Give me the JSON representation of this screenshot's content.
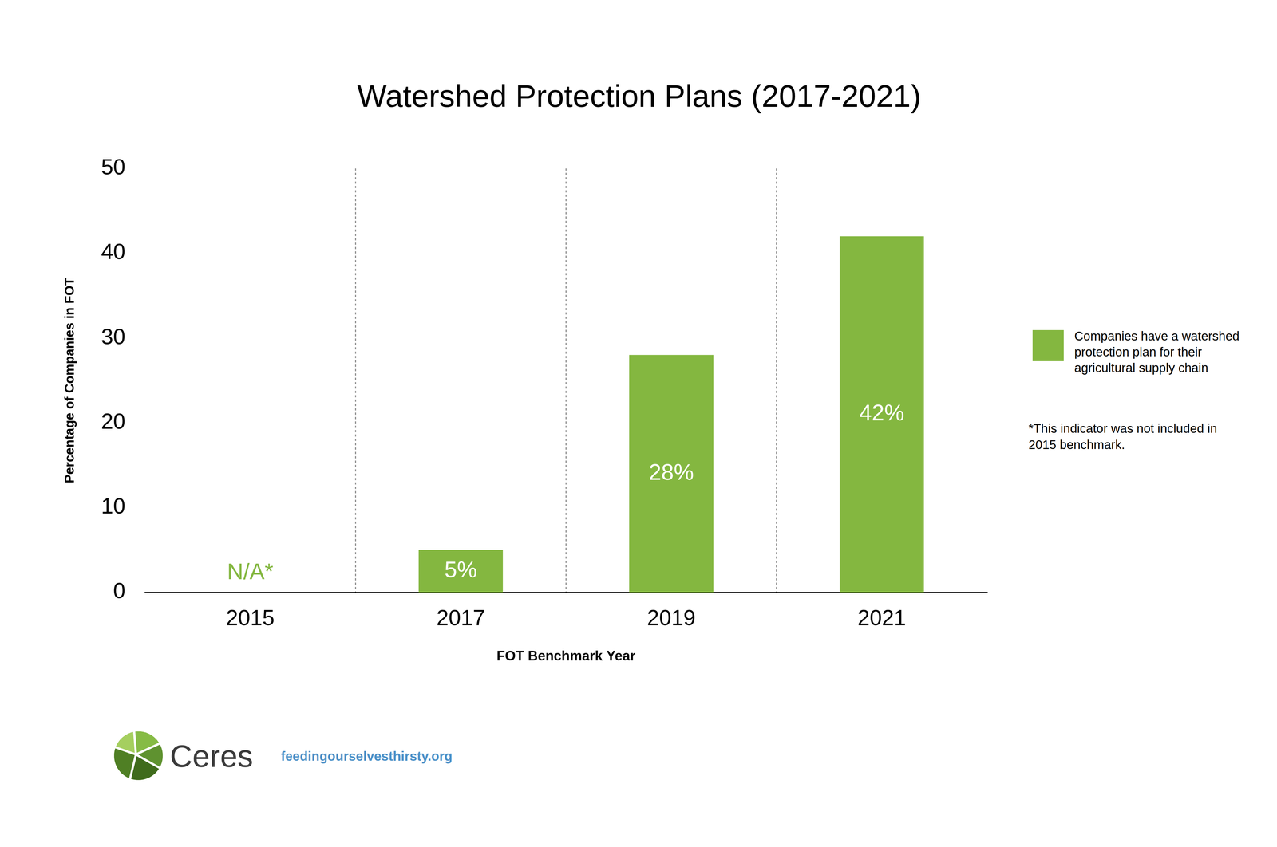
{
  "chart_data": {
    "type": "bar",
    "title": "Watershed Protection Plans (2017-2021)",
    "x_label": "FOT Benchmark Year",
    "y_label": "Percentage of Companies in FOT",
    "categories": [
      "2015",
      "2017",
      "2019",
      "2021"
    ],
    "series": [
      {
        "name": "Companies have a watershed protection plan for their agricultural supply chain",
        "color": "#84b740",
        "values": [
          null,
          5,
          28,
          42
        ],
        "value_labels": [
          "N/A*",
          "5%",
          "28%",
          "42%"
        ]
      }
    ],
    "ylim": [
      0,
      50
    ],
    "yticks": [
      0,
      10,
      20,
      30,
      40,
      50
    ],
    "grid": true,
    "legend": "right",
    "data_labels": true,
    "annotations": [
      "*This indicator was not included in 2015 benchmark."
    ],
    "footer": {
      "logo_text": "Ceres",
      "url": "feedingourselvesthirsty.org"
    }
  }
}
